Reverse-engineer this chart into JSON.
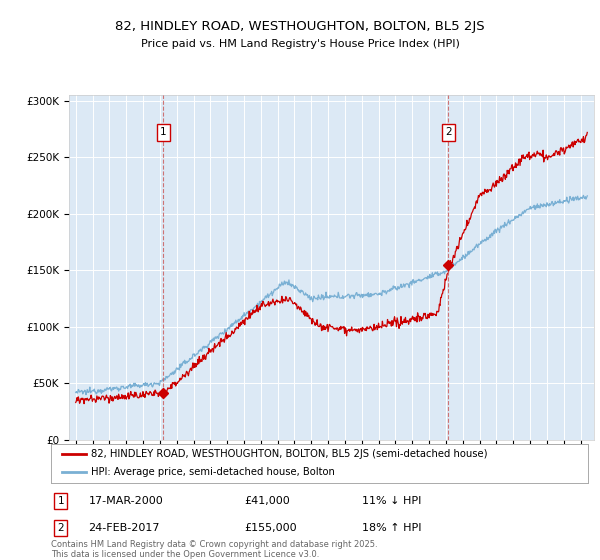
{
  "title": "82, HINDLEY ROAD, WESTHOUGHTON, BOLTON, BL5 2JS",
  "subtitle": "Price paid vs. HM Land Registry's House Price Index (HPI)",
  "bg_color": "#dce9f5",
  "red_line_label": "82, HINDLEY ROAD, WESTHOUGHTON, BOLTON, BL5 2JS (semi-detached house)",
  "blue_line_label": "HPI: Average price, semi-detached house, Bolton",
  "annotation1_date": "17-MAR-2000",
  "annotation1_price": "£41,000",
  "annotation1_hpi": "11% ↓ HPI",
  "annotation1_year": 2000.21,
  "annotation1_value": 41000,
  "annotation2_date": "24-FEB-2017",
  "annotation2_price": "£155,000",
  "annotation2_hpi": "18% ↑ HPI",
  "annotation2_year": 2017.14,
  "annotation2_value": 155000,
  "yticks": [
    0,
    50000,
    100000,
    150000,
    200000,
    250000,
    300000
  ],
  "ytick_labels": [
    "£0",
    "£50K",
    "£100K",
    "£150K",
    "£200K",
    "£250K",
    "£300K"
  ],
  "copyright_text": "Contains HM Land Registry data © Crown copyright and database right 2025.\nThis data is licensed under the Open Government Licence v3.0.",
  "red_color": "#cc0000",
  "blue_color": "#7ab0d4",
  "ylim_max": 300000,
  "xstart": 1995,
  "xend": 2025
}
